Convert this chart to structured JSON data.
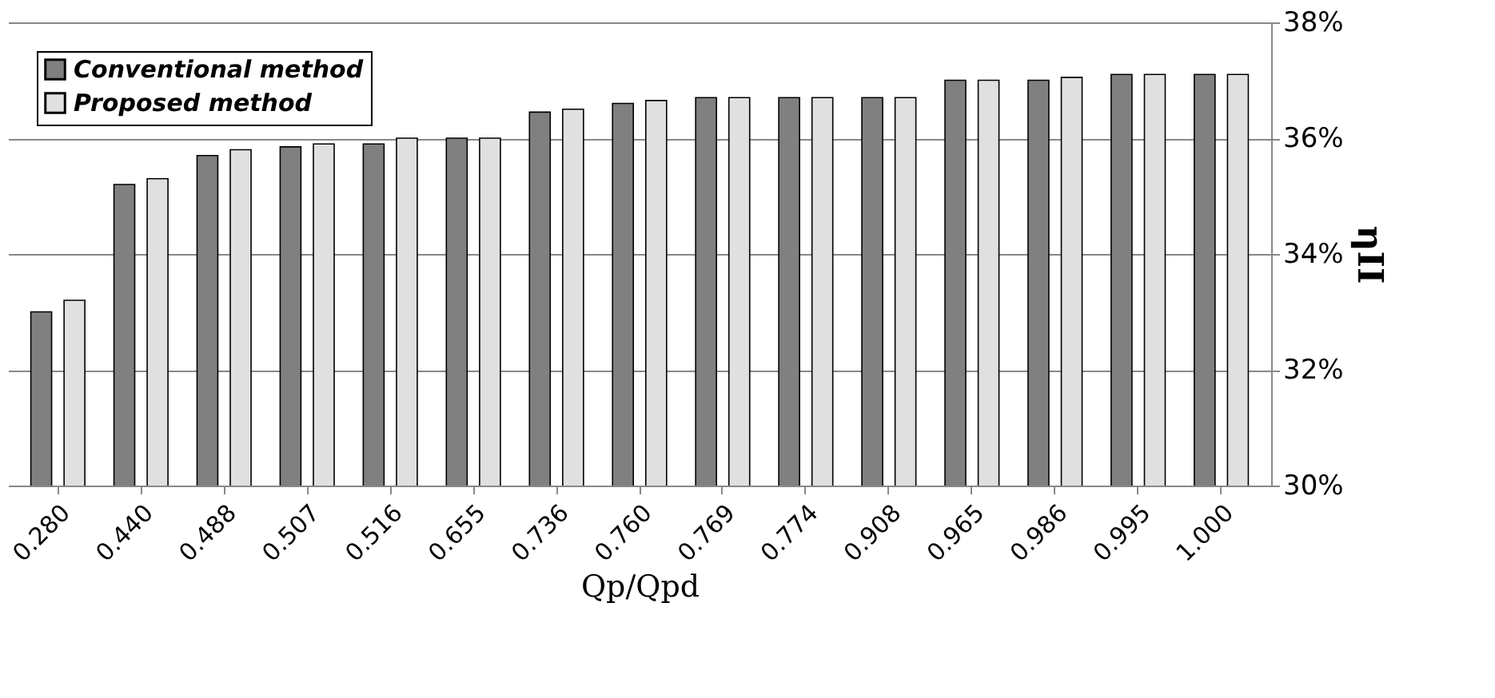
{
  "chart_data": {
    "type": "bar",
    "xlabel": "Qp/Qpd",
    "ylabel": "ηII",
    "categories": [
      "0.280",
      "0.440",
      "0.488",
      "0.507",
      "0.516",
      "0.655",
      "0.736",
      "0.760",
      "0.769",
      "0.774",
      "0.908",
      "0.965",
      "0.986",
      "0.995",
      "1.000"
    ],
    "series": [
      {
        "name": "Conventional method",
        "color": "#808080",
        "values": [
          33.0,
          35.2,
          35.7,
          35.85,
          35.9,
          36.0,
          36.45,
          36.6,
          36.7,
          36.7,
          36.7,
          37.0,
          37.0,
          37.1,
          37.1
        ]
      },
      {
        "name": "Proposed method",
        "color": "#e0e0e0",
        "values": [
          33.2,
          35.3,
          35.8,
          35.9,
          36.0,
          36.0,
          36.5,
          36.65,
          36.7,
          36.7,
          36.7,
          37.0,
          37.05,
          37.1,
          37.1
        ]
      }
    ],
    "ylim": [
      30,
      38
    ],
    "yticks": [
      {
        "value": 30,
        "label": "30%"
      },
      {
        "value": 32,
        "label": "32%"
      },
      {
        "value": 34,
        "label": "34%"
      },
      {
        "value": 36,
        "label": "36%"
      },
      {
        "value": 38,
        "label": "38%"
      }
    ],
    "grid": "y",
    "legend": "top left"
  }
}
